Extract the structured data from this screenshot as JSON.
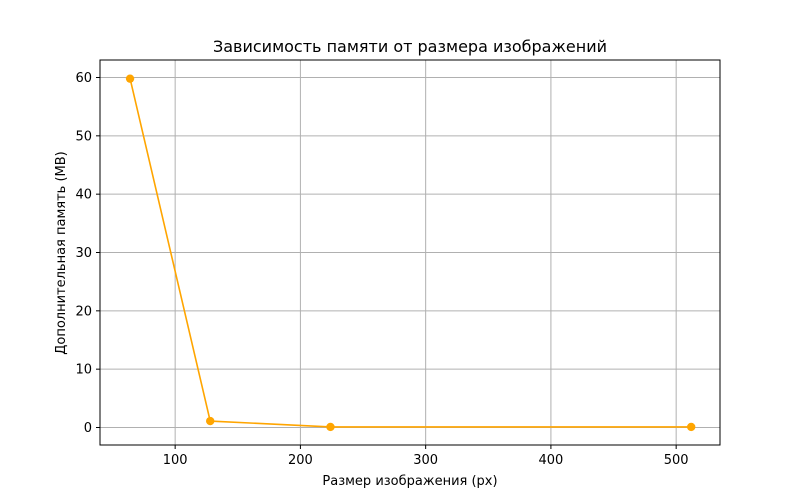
{
  "chart_data": {
    "type": "line",
    "title": "Зависимость памяти от размера изображений",
    "xlabel": "Размер изображения (px)",
    "ylabel": "Дополнительная память (MB)",
    "xlim": [
      40,
      535
    ],
    "ylim": [
      -3,
      63
    ],
    "xticks": [
      100,
      200,
      300,
      400,
      500
    ],
    "yticks": [
      0,
      10,
      20,
      30,
      40,
      50,
      60
    ],
    "grid": true,
    "series": [
      {
        "color": "#ffa500",
        "marker": "circle",
        "x": [
          64,
          128,
          224,
          512
        ],
        "y": [
          59.8,
          1.1,
          0.1,
          0.1
        ]
      }
    ]
  }
}
